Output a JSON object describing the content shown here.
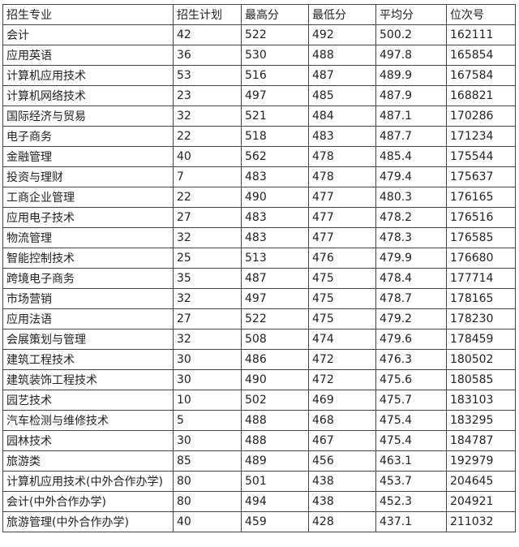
{
  "table": {
    "headers": [
      "招生专业",
      "招生计划",
      "最高分",
      "最低分",
      "平均分",
      "位次号"
    ],
    "rows": [
      [
        "会计",
        "42",
        "522",
        "492",
        "500.2",
        "162111"
      ],
      [
        "应用英语",
        "36",
        "530",
        "488",
        "497.8",
        "165854"
      ],
      [
        "计算机应用技术",
        "53",
        "516",
        "487",
        "489.9",
        "167584"
      ],
      [
        "计算机网络技术",
        "23",
        "497",
        "485",
        "487.9",
        "168821"
      ],
      [
        "国际经济与贸易",
        "32",
        "521",
        "484",
        "487.1",
        "170286"
      ],
      [
        "电子商务",
        "22",
        "518",
        "483",
        "487.7",
        "171234"
      ],
      [
        "金融管理",
        "40",
        "562",
        "478",
        "485.4",
        "175544"
      ],
      [
        "投资与理财",
        "7",
        "483",
        "478",
        "479.4",
        "175637"
      ],
      [
        "工商企业管理",
        "22",
        "490",
        "477",
        "480.3",
        "176165"
      ],
      [
        "应用电子技术",
        "27",
        "483",
        "477",
        "478.2",
        "176516"
      ],
      [
        "物流管理",
        "32",
        "483",
        "477",
        "478.3",
        "176585"
      ],
      [
        "智能控制技术",
        "25",
        "513",
        "476",
        "479.9",
        "176680"
      ],
      [
        "跨境电子商务",
        "35",
        "487",
        "475",
        "478.4",
        "177714"
      ],
      [
        "市场营销",
        "32",
        "497",
        "475",
        "478.7",
        "178165"
      ],
      [
        "应用法语",
        "27",
        "522",
        "475",
        "479.2",
        "178230"
      ],
      [
        "会展策划与管理",
        "32",
        "508",
        "474",
        "479.6",
        "178459"
      ],
      [
        "建筑工程技术",
        "30",
        "486",
        "472",
        "476.3",
        "180502"
      ],
      [
        "建筑装饰工程技术",
        "30",
        "490",
        "472",
        "475.6",
        "180585"
      ],
      [
        "园艺技术",
        "10",
        "502",
        "469",
        "475.7",
        "183103"
      ],
      [
        "汽车检测与维修技术",
        "5",
        "488",
        "468",
        "475.4",
        "183295"
      ],
      [
        "园林技术",
        "30",
        "488",
        "467",
        "475.4",
        "184787"
      ],
      [
        "旅游类",
        "85",
        "489",
        "456",
        "463.1",
        "192979"
      ],
      [
        "计算机应用技术(中外合作办学)",
        "80",
        "501",
        "438",
        "453.7",
        "204645"
      ],
      [
        "会计(中外合作办学)",
        "80",
        "494",
        "438",
        "452.3",
        "204921"
      ],
      [
        "旅游管理(中外合作办学)",
        "40",
        "459",
        "428",
        "437.1",
        "211032"
      ]
    ]
  }
}
